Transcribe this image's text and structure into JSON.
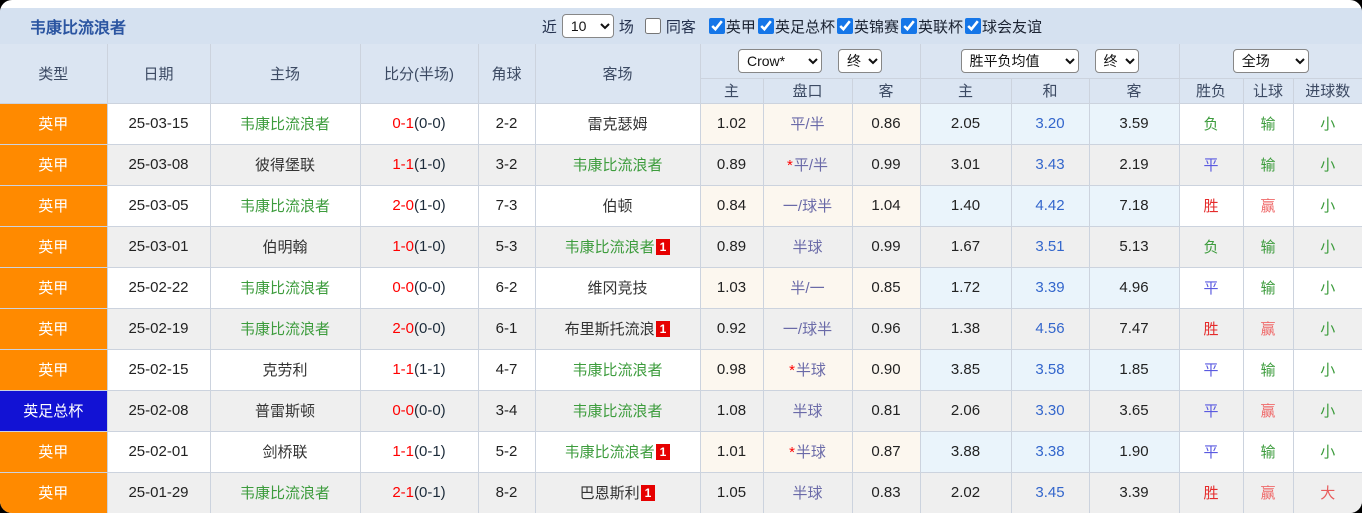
{
  "topbar": {
    "title": "韦康比流浪者",
    "recent_label": "近",
    "recent_select": "10",
    "matches_label": "场",
    "same_venue": {
      "label": "同客",
      "checked": false
    },
    "league_filters": [
      {
        "label": "英甲",
        "checked": true
      },
      {
        "label": "英足总杯",
        "checked": true
      },
      {
        "label": "英锦赛",
        "checked": true
      },
      {
        "label": "英联杯",
        "checked": true
      },
      {
        "label": "球会友谊",
        "checked": true
      }
    ]
  },
  "table": {
    "static_headers": [
      "类型",
      "日期",
      "主场",
      "比分(半场)",
      "角球",
      "客场"
    ],
    "selects": {
      "provider": "Crow*",
      "handicap_time": "终",
      "avg": "胜平负均值",
      "avg_time": "终",
      "scope": "全场"
    },
    "sub_headers": [
      "主",
      "盘口",
      "客",
      "主",
      "和",
      "客",
      "胜负",
      "让球",
      "进球数"
    ],
    "symbols": {
      "star": "*"
    },
    "rows": [
      {
        "league": "英甲",
        "date": "25-03-15",
        "home": "韦康比流浪者",
        "home_focus": true,
        "score": "0-1",
        "half": "(0-0)",
        "corners": "2-2",
        "away": "雷克瑟姆",
        "away_focus": false,
        "away_badge": "",
        "ah_home": "1.02",
        "ah_star": false,
        "ah_line": "平/半",
        "ah_away": "0.86",
        "odds_home": "2.05",
        "odds_draw": "3.20",
        "odds_away": "3.59",
        "result": "负",
        "handicap_result": "输",
        "goals_result": "小"
      },
      {
        "league": "英甲",
        "date": "25-03-08",
        "home": "彼得堡联",
        "home_focus": false,
        "score": "1-1",
        "half": "(1-0)",
        "corners": "3-2",
        "away": "韦康比流浪者",
        "away_focus": true,
        "away_badge": "",
        "ah_home": "0.89",
        "ah_star": true,
        "ah_line": "平/半",
        "ah_away": "0.99",
        "odds_home": "3.01",
        "odds_draw": "3.43",
        "odds_away": "2.19",
        "result": "平",
        "handicap_result": "输",
        "goals_result": "小"
      },
      {
        "league": "英甲",
        "date": "25-03-05",
        "home": "韦康比流浪者",
        "home_focus": true,
        "score": "2-0",
        "half": "(1-0)",
        "corners": "7-3",
        "away": "伯顿",
        "away_focus": false,
        "away_badge": "",
        "ah_home": "0.84",
        "ah_star": false,
        "ah_line": "一/球半",
        "ah_away": "1.04",
        "odds_home": "1.40",
        "odds_draw": "4.42",
        "odds_away": "7.18",
        "result": "胜",
        "handicap_result": "赢",
        "goals_result": "小"
      },
      {
        "league": "英甲",
        "date": "25-03-01",
        "home": "伯明翰",
        "home_focus": false,
        "score": "1-0",
        "half": "(1-0)",
        "corners": "5-3",
        "away": "韦康比流浪者",
        "away_focus": true,
        "away_badge": "1",
        "ah_home": "0.89",
        "ah_star": false,
        "ah_line": "半球",
        "ah_away": "0.99",
        "odds_home": "1.67",
        "odds_draw": "3.51",
        "odds_away": "5.13",
        "result": "负",
        "handicap_result": "输",
        "goals_result": "小"
      },
      {
        "league": "英甲",
        "date": "25-02-22",
        "home": "韦康比流浪者",
        "home_focus": true,
        "score": "0-0",
        "half": "(0-0)",
        "corners": "6-2",
        "away": "维冈竞技",
        "away_focus": false,
        "away_badge": "",
        "ah_home": "1.03",
        "ah_star": false,
        "ah_line": "半/一",
        "ah_away": "0.85",
        "odds_home": "1.72",
        "odds_draw": "3.39",
        "odds_away": "4.96",
        "result": "平",
        "handicap_result": "输",
        "goals_result": "小"
      },
      {
        "league": "英甲",
        "date": "25-02-19",
        "home": "韦康比流浪者",
        "home_focus": true,
        "score": "2-0",
        "half": "(0-0)",
        "corners": "6-1",
        "away": "布里斯托流浪",
        "away_focus": false,
        "away_badge": "1",
        "ah_home": "0.92",
        "ah_star": false,
        "ah_line": "一/球半",
        "ah_away": "0.96",
        "odds_home": "1.38",
        "odds_draw": "4.56",
        "odds_away": "7.47",
        "result": "胜",
        "handicap_result": "赢",
        "goals_result": "小"
      },
      {
        "league": "英甲",
        "date": "25-02-15",
        "home": "克劳利",
        "home_focus": false,
        "score": "1-1",
        "half": "(1-1)",
        "corners": "4-7",
        "away": "韦康比流浪者",
        "away_focus": true,
        "away_badge": "",
        "ah_home": "0.98",
        "ah_star": true,
        "ah_line": "半球",
        "ah_away": "0.90",
        "odds_home": "3.85",
        "odds_draw": "3.58",
        "odds_away": "1.85",
        "result": "平",
        "handicap_result": "输",
        "goals_result": "小"
      },
      {
        "league": "英足总杯",
        "date": "25-02-08",
        "home": "普雷斯顿",
        "home_focus": false,
        "score": "0-0",
        "half": "(0-0)",
        "corners": "3-4",
        "away": "韦康比流浪者",
        "away_focus": true,
        "away_badge": "",
        "ah_home": "1.08",
        "ah_star": false,
        "ah_line": "半球",
        "ah_away": "0.81",
        "odds_home": "2.06",
        "odds_draw": "3.30",
        "odds_away": "3.65",
        "result": "平",
        "handicap_result": "赢",
        "goals_result": "小"
      },
      {
        "league": "英甲",
        "date": "25-02-01",
        "home": "剑桥联",
        "home_focus": false,
        "score": "1-1",
        "half": "(0-1)",
        "corners": "5-2",
        "away": "韦康比流浪者",
        "away_focus": true,
        "away_badge": "1",
        "ah_home": "1.01",
        "ah_star": true,
        "ah_line": "半球",
        "ah_away": "0.87",
        "odds_home": "3.88",
        "odds_draw": "3.38",
        "odds_away": "1.90",
        "result": "平",
        "handicap_result": "输",
        "goals_result": "小"
      },
      {
        "league": "英甲",
        "date": "25-01-29",
        "home": "韦康比流浪者",
        "home_focus": true,
        "score": "2-1",
        "half": "(0-1)",
        "corners": "8-2",
        "away": "巴恩斯利",
        "away_focus": false,
        "away_badge": "1",
        "ah_home": "1.05",
        "ah_star": false,
        "ah_line": "半球",
        "ah_away": "0.83",
        "odds_home": "2.02",
        "odds_draw": "3.45",
        "odds_away": "3.39",
        "result": "胜",
        "handicap_result": "赢",
        "goals_result": "大"
      }
    ]
  },
  "colors": {
    "league_orange": "#ff8a00",
    "cup_blue": "#1212d4",
    "focus_team_green": "#3d9c3d",
    "opponent_gray": "#333333",
    "score_red": "#ff0000",
    "draw_odds_blue": "#3366cc",
    "handicap_line_violet": "#6a6aa8",
    "handicap_star_red": "#ff0000",
    "badge_red": "#e60000",
    "value_colors": {
      "胜": "#e52b2b",
      "平": "#5a5ae0",
      "负": "#3d9c3d",
      "赢": "#ef6a6a",
      "输": "#3d9c3d",
      "大": "#e85c5c",
      "小": "#3d9c3d"
    }
  }
}
